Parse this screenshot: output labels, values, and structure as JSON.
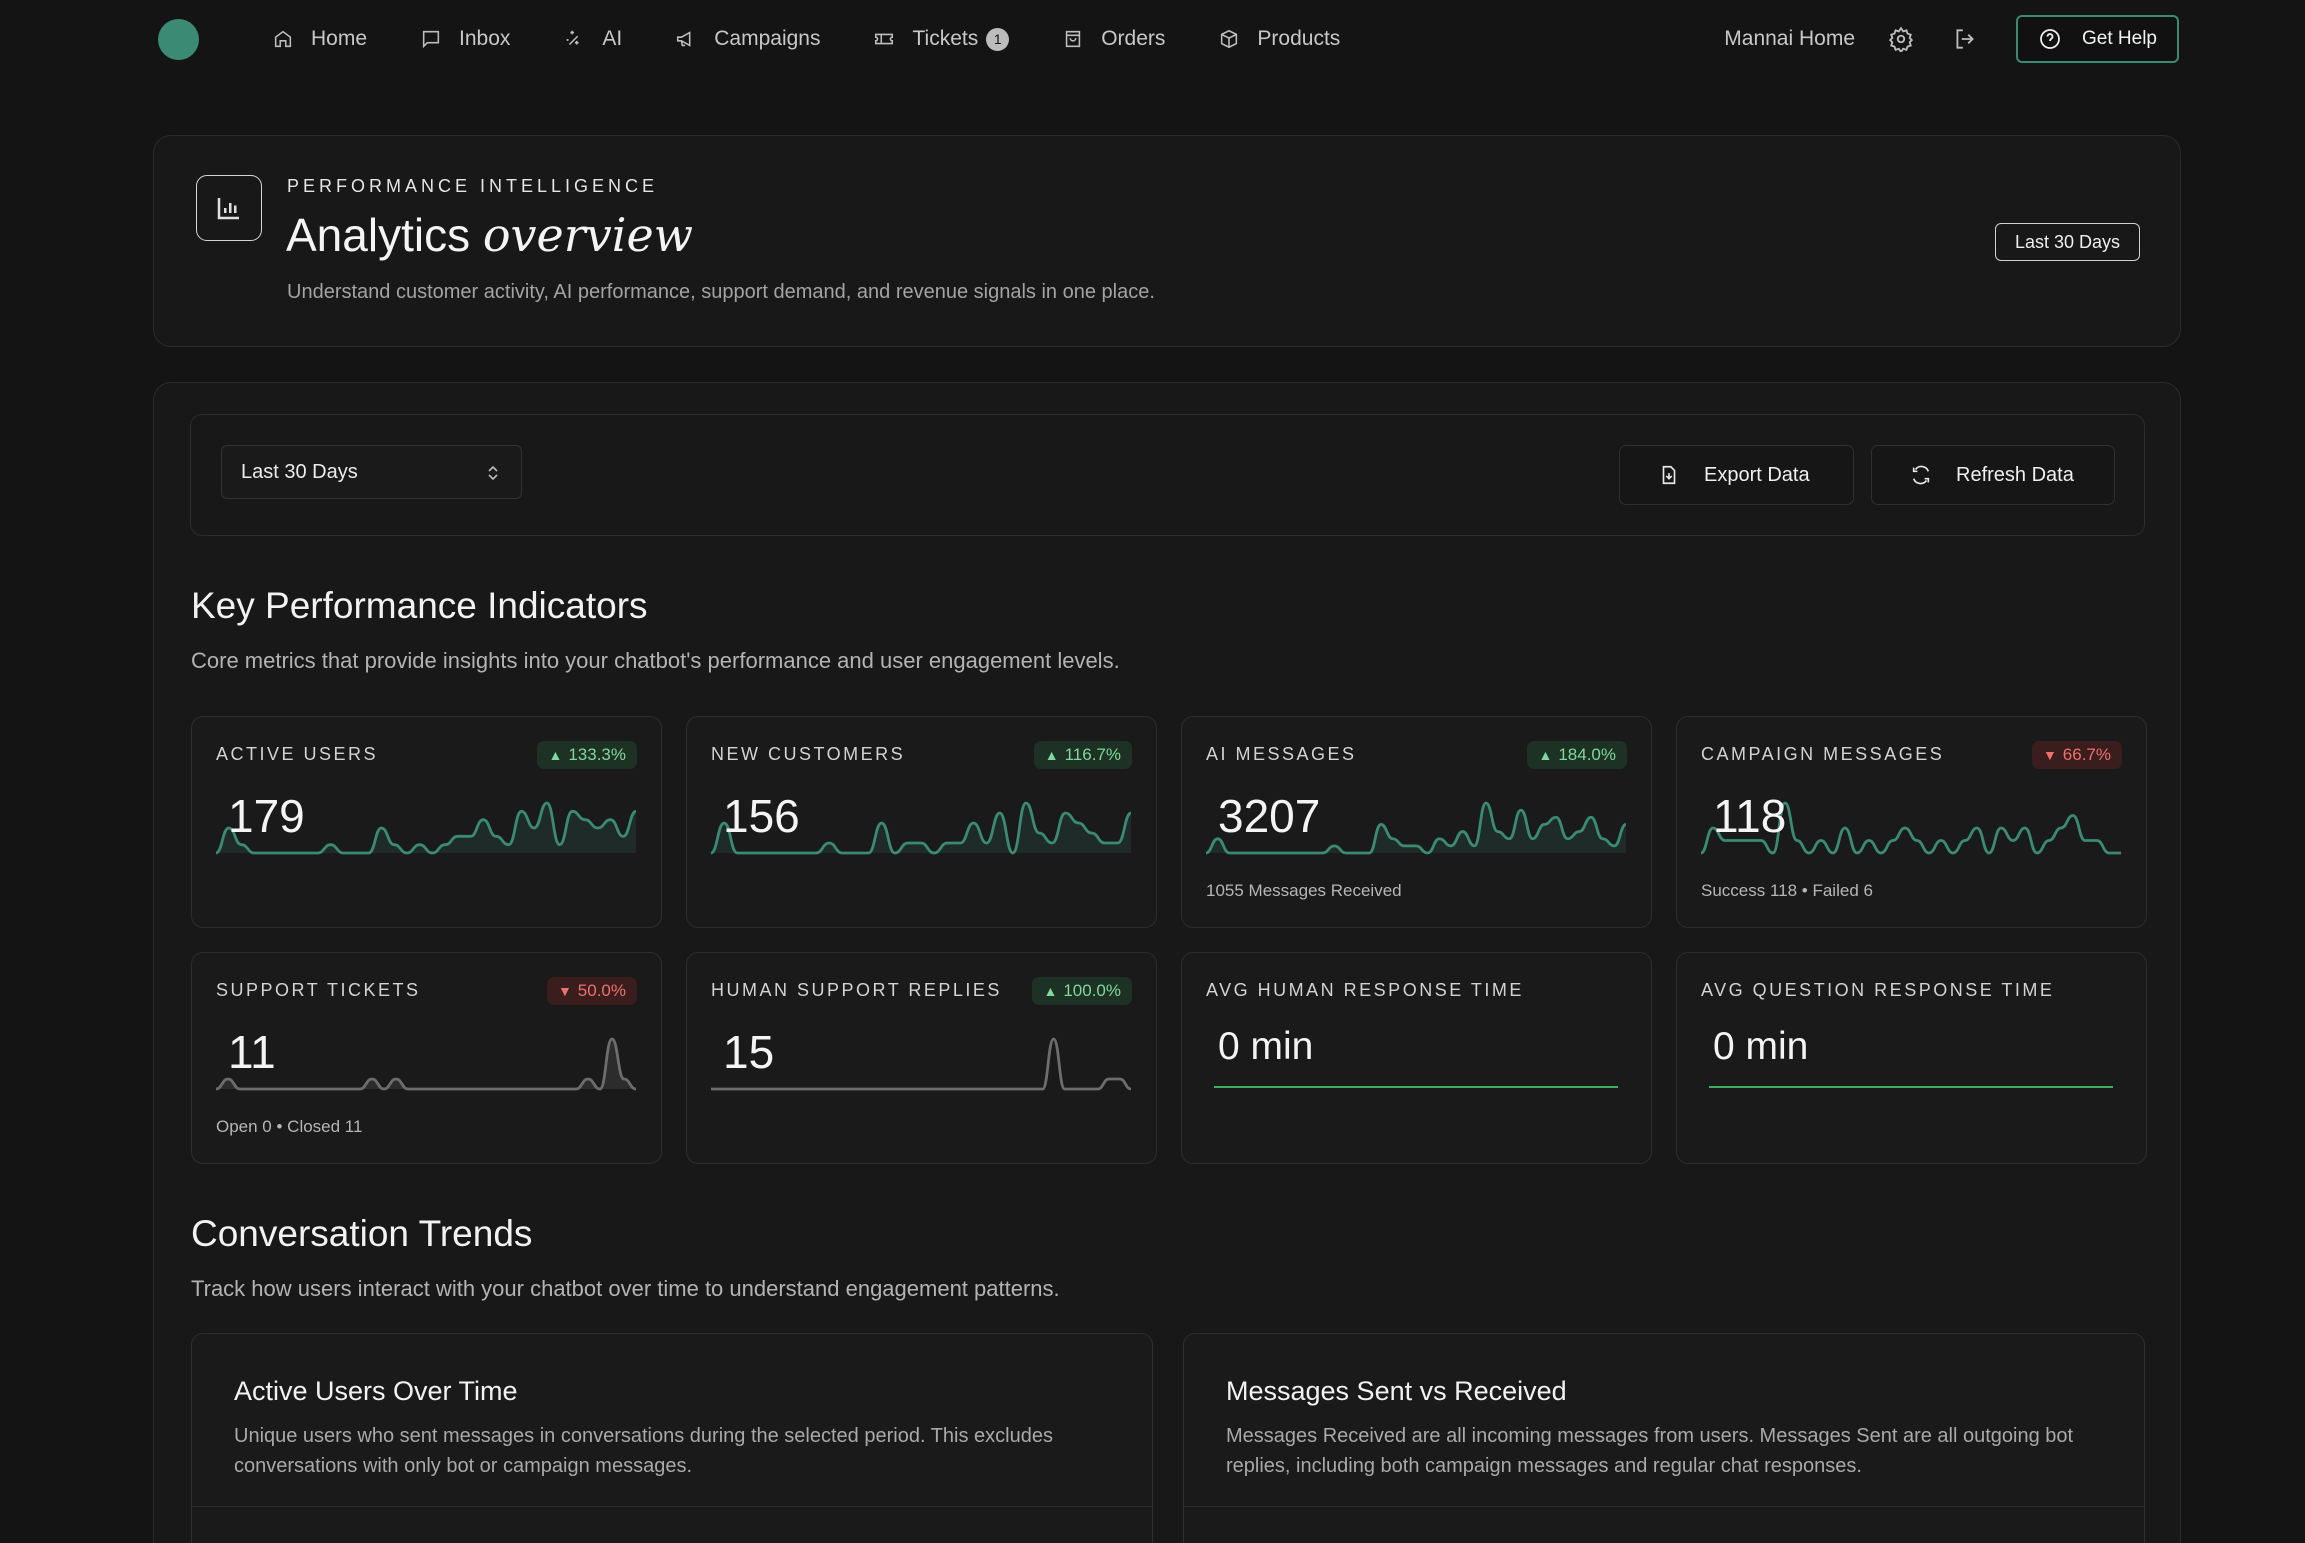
{
  "nav": {
    "items": [
      {
        "label": "Home",
        "icon": "home-icon"
      },
      {
        "label": "Inbox",
        "icon": "inbox-icon"
      },
      {
        "label": "AI",
        "icon": "sparkle-icon"
      },
      {
        "label": "Campaigns",
        "icon": "megaphone-icon"
      },
      {
        "label": "Tickets",
        "icon": "ticket-icon",
        "badge": "1"
      },
      {
        "label": "Orders",
        "icon": "bag-icon"
      },
      {
        "label": "Products",
        "icon": "box-icon"
      }
    ],
    "workspace": "Mannai Home",
    "help_label": "Get Help"
  },
  "hero": {
    "eyebrow": "PERFORMANCE INTELLIGENCE",
    "title_plain": "Analytics",
    "title_em": "overview",
    "subtitle": "Understand customer activity, AI performance, support demand, and revenue signals in one place.",
    "period_tag": "Last 30 Days"
  },
  "toolbar": {
    "range_value": "Last 30 Days",
    "export_label": "Export Data",
    "refresh_label": "Refresh Data"
  },
  "kpi_section": {
    "title": "Key Performance Indicators",
    "subtitle": "Core metrics that provide insights into your chatbot's performance and user engagement levels."
  },
  "kpis": [
    {
      "label": "ACTIVE USERS",
      "value": "179",
      "change": "133.3%",
      "direction": "up",
      "foot": "",
      "spark": [
        0,
        3,
        1,
        0,
        0,
        0,
        0,
        0,
        0,
        1,
        0,
        0,
        0,
        3,
        1,
        0,
        1,
        0,
        1,
        2,
        2,
        4,
        2,
        1,
        5,
        3,
        6,
        1,
        5,
        4,
        3,
        4,
        2,
        5
      ]
    },
    {
      "label": "NEW CUSTOMERS",
      "value": "156",
      "change": "116.7%",
      "direction": "up",
      "foot": "",
      "spark": [
        0,
        3,
        0,
        0,
        0,
        0,
        0,
        0,
        0,
        1,
        0,
        0,
        0,
        3,
        0,
        1,
        1,
        0,
        1,
        1,
        3,
        1,
        4,
        0,
        5,
        2,
        1,
        4,
        3,
        2,
        1,
        1,
        4
      ]
    },
    {
      "label": "AI MESSAGES",
      "value": "3207",
      "change": "184.0%",
      "direction": "up",
      "foot": "1055 Messages Received",
      "spark": [
        0,
        2,
        0,
        0,
        0,
        0,
        0,
        0,
        0,
        0,
        0,
        1,
        0,
        0,
        0,
        4,
        2,
        1,
        1,
        0,
        2,
        1,
        3,
        1,
        7,
        3,
        2,
        6,
        2,
        4,
        5,
        2,
        3,
        5,
        2,
        1,
        4
      ]
    },
    {
      "label": "CAMPAIGN MESSAGES",
      "value": "118",
      "change": "66.7%",
      "direction": "down",
      "foot": "Success 118 • Failed 6",
      "spark": [
        0,
        2,
        1,
        1,
        1,
        1,
        0,
        4,
        1,
        0,
        1,
        0,
        2,
        0,
        1,
        0,
        1,
        2,
        1,
        0,
        1,
        0,
        1,
        2,
        0,
        2,
        1,
        2,
        0,
        1,
        2,
        3,
        1,
        1,
        0,
        0
      ]
    },
    {
      "label": "SUPPORT TICKETS",
      "value": "11",
      "change": "50.0%",
      "direction": "down",
      "foot": "Open 0 • Closed 11",
      "spark": [
        0,
        1,
        0,
        0,
        0,
        0,
        0,
        0,
        0,
        0,
        0,
        0,
        0,
        1,
        0,
        1,
        0,
        0,
        0,
        0,
        0,
        0,
        0,
        0,
        0,
        0,
        0,
        0,
        0,
        0,
        0,
        1,
        0,
        5,
        1,
        0
      ]
    },
    {
      "label": "HUMAN SUPPORT REPLIES",
      "value": "15",
      "change": "100.0%",
      "direction": "up",
      "foot": "",
      "spark": [
        0,
        0,
        0,
        0,
        0,
        0,
        0,
        0,
        0,
        0,
        0,
        0,
        0,
        0,
        0,
        0,
        0,
        0,
        0,
        0,
        0,
        0,
        0,
        0,
        0,
        0,
        0,
        0,
        0,
        0,
        0,
        5,
        0,
        0,
        0,
        0,
        1,
        1,
        0
      ]
    },
    {
      "label": "AVG HUMAN RESPONSE TIME",
      "value": "0 min",
      "change": "",
      "direction": "",
      "foot": "",
      "spark": []
    },
    {
      "label": "AVG QUESTION RESPONSE TIME",
      "value": "0 min",
      "change": "",
      "direction": "",
      "foot": "",
      "spark": []
    }
  ],
  "trends_section": {
    "title": "Conversation Trends",
    "subtitle": "Track how users interact with your chatbot over time to understand engagement patterns."
  },
  "trend_cards": [
    {
      "title": "Active Users Over Time",
      "description": "Unique users who sent messages in conversations during the selected period. This excludes conversations with only bot or campaign messages."
    },
    {
      "title": "Messages Sent vs Received",
      "description": "Messages Received are all incoming messages from users. Messages Sent are all outgoing bot replies, including both campaign messages and regular chat responses."
    }
  ],
  "colors": {
    "accent": "#3b8a74",
    "spark_green": "#3b8a74",
    "spark_gray": "#6d6d6d",
    "up": "#7ed99a",
    "down": "#ef7070",
    "flat_line": "#3fae5e"
  }
}
